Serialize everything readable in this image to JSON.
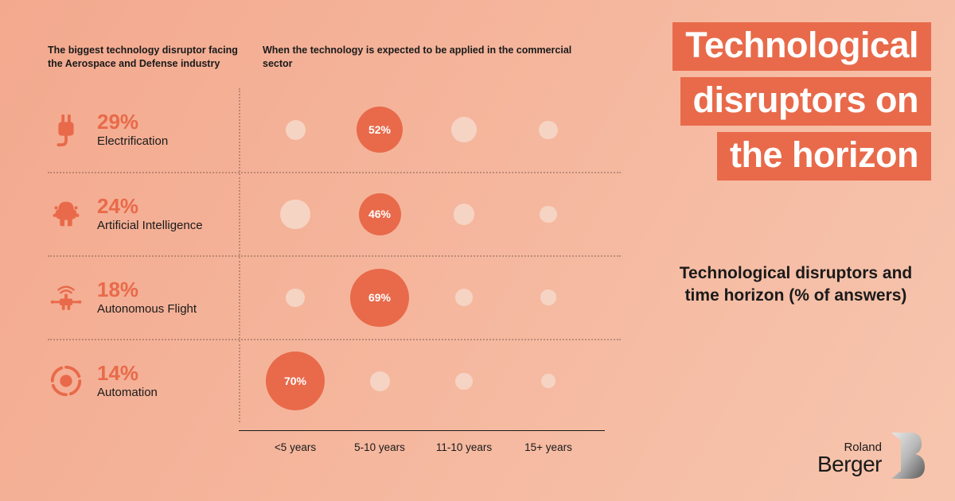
{
  "background_gradient": {
    "from": "#f3a98e",
    "to": "#f7c5ae"
  },
  "accent_color": "#e86a4a",
  "light_bubble_color": "#f6d4c4",
  "text_color": "#1a1a1a",
  "title_bg": "#e86a4a",
  "header_left": "The biggest technology disruptor facing the Aerospace and Defense industry",
  "header_right": "When the technology is expected to be applied in the commercial sector",
  "title_lines": [
    "Technological",
    "disruptors on",
    "the horizon"
  ],
  "subtitle": "Technological disruptors and time horizon (% of answers)",
  "xaxis": [
    "<5 years",
    "5-10 years",
    "11-10 years",
    "15+ years"
  ],
  "bubble_max_diameter": 74,
  "bubble_min_diameter": 18,
  "rows": [
    {
      "icon": "plug",
      "pct": "29%",
      "label": "Electrification",
      "values": [
        14,
        52,
        22,
        12
      ],
      "highlight_index": 1
    },
    {
      "icon": "ai",
      "pct": "24%",
      "label": "Artificial Intelligence",
      "values": [
        28,
        46,
        16,
        10
      ],
      "highlight_index": 1
    },
    {
      "icon": "drone",
      "pct": "18%",
      "label": "Autonomous Flight",
      "values": [
        12,
        69,
        11,
        8
      ],
      "highlight_index": 1
    },
    {
      "icon": "automation",
      "pct": "14%",
      "label": "Automation",
      "values": [
        70,
        14,
        10,
        6
      ],
      "highlight_index": 0
    }
  ],
  "logo": {
    "line1": "Roland",
    "line2": "Berger"
  }
}
